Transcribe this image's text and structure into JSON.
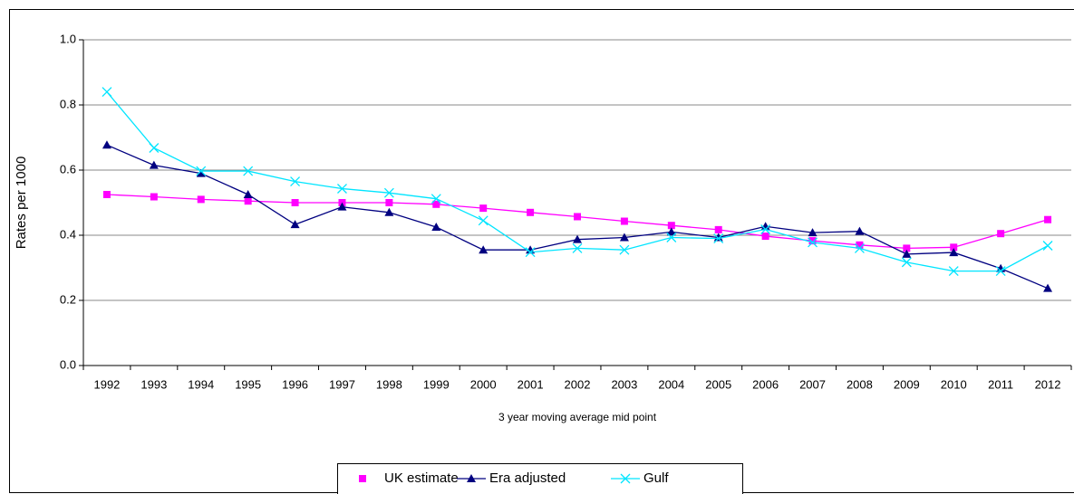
{
  "chart_data": {
    "type": "line",
    "y_label": "Rates per 1000",
    "x_label": "3 year moving average mid point",
    "categories": [
      "1992",
      "1993",
      "1994",
      "1995",
      "1996",
      "1997",
      "1998",
      "1999",
      "2000",
      "2001",
      "2002",
      "2003",
      "2004",
      "2005",
      "2006",
      "2007",
      "2008",
      "2009",
      "2010",
      "2011",
      "2012"
    ],
    "series": [
      {
        "name": "UK estimate",
        "color": "#ff00ff",
        "marker": "square",
        "values": [
          0.525,
          0.518,
          0.51,
          0.505,
          0.5,
          0.5,
          0.5,
          0.495,
          0.483,
          0.47,
          0.457,
          0.443,
          0.43,
          0.417,
          0.397,
          0.383,
          0.37,
          0.36,
          0.363,
          0.405,
          0.448
        ]
      },
      {
        "name": "Era adjusted",
        "color": "#000080",
        "marker": "triangle",
        "values": [
          0.677,
          0.615,
          0.59,
          0.525,
          0.433,
          0.487,
          0.47,
          0.425,
          0.355,
          0.355,
          0.387,
          0.393,
          0.41,
          0.393,
          0.427,
          0.408,
          0.412,
          0.342,
          0.347,
          0.298,
          0.237
        ]
      },
      {
        "name": "Gulf",
        "color": "#00e5ff",
        "marker": "x",
        "values": [
          0.84,
          0.668,
          0.597,
          0.597,
          0.565,
          0.543,
          0.53,
          0.512,
          0.445,
          0.348,
          0.36,
          0.355,
          0.393,
          0.39,
          0.418,
          0.378,
          0.36,
          0.317,
          0.29,
          0.29,
          0.368
        ]
      }
    ],
    "ylim": [
      0,
      1
    ],
    "yticks": [
      {
        "value": 0,
        "label": "0.0"
      },
      0.2,
      0.4,
      0.6,
      0.8,
      {
        "value": 1,
        "label": "1.0"
      }
    ],
    "grid": true,
    "legend": "bottom"
  }
}
